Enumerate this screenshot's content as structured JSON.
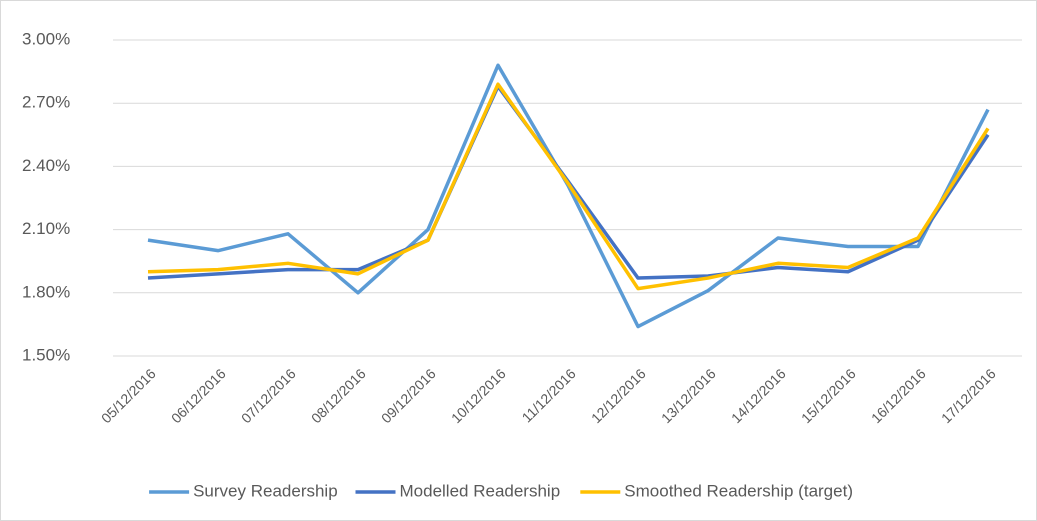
{
  "chart_data": {
    "type": "line",
    "categories": [
      "05/12/2016",
      "06/12/2016",
      "07/12/2016",
      "08/12/2016",
      "09/12/2016",
      "10/12/2016",
      "11/12/2016",
      "12/12/2016",
      "13/12/2016",
      "14/12/2016",
      "15/12/2016",
      "16/12/2016",
      "17/12/2016"
    ],
    "series": [
      {
        "name": "Survey Readership",
        "color": "#5b9bd5",
        "values": [
          2.05,
          2.0,
          2.08,
          1.8,
          2.1,
          2.88,
          2.31,
          1.64,
          1.81,
          2.06,
          2.02,
          2.02,
          2.67
        ]
      },
      {
        "name": "Modelled Readership",
        "color": "#4472c4",
        "values": [
          1.87,
          1.89,
          1.91,
          1.91,
          2.05,
          2.78,
          2.33,
          1.87,
          1.88,
          1.92,
          1.9,
          2.05,
          2.55
        ]
      },
      {
        "name": "Smoothed Readership (target)",
        "color": "#ffc000",
        "values": [
          1.9,
          1.91,
          1.94,
          1.89,
          2.05,
          2.79,
          2.32,
          1.82,
          1.87,
          1.94,
          1.92,
          2.06,
          2.58
        ]
      }
    ],
    "ylim": [
      1.5,
      3.0
    ],
    "yticks": [
      {
        "value": 1.5,
        "label": "1.50%"
      },
      {
        "value": 1.8,
        "label": "1.80%"
      },
      {
        "value": 2.1,
        "label": "2.10%"
      },
      {
        "value": 2.4,
        "label": "2.40%"
      },
      {
        "value": 2.7,
        "label": "2.70%"
      },
      {
        "value": 3.0,
        "label": "3.00%"
      }
    ],
    "grid": true,
    "legend": "bottom"
  }
}
